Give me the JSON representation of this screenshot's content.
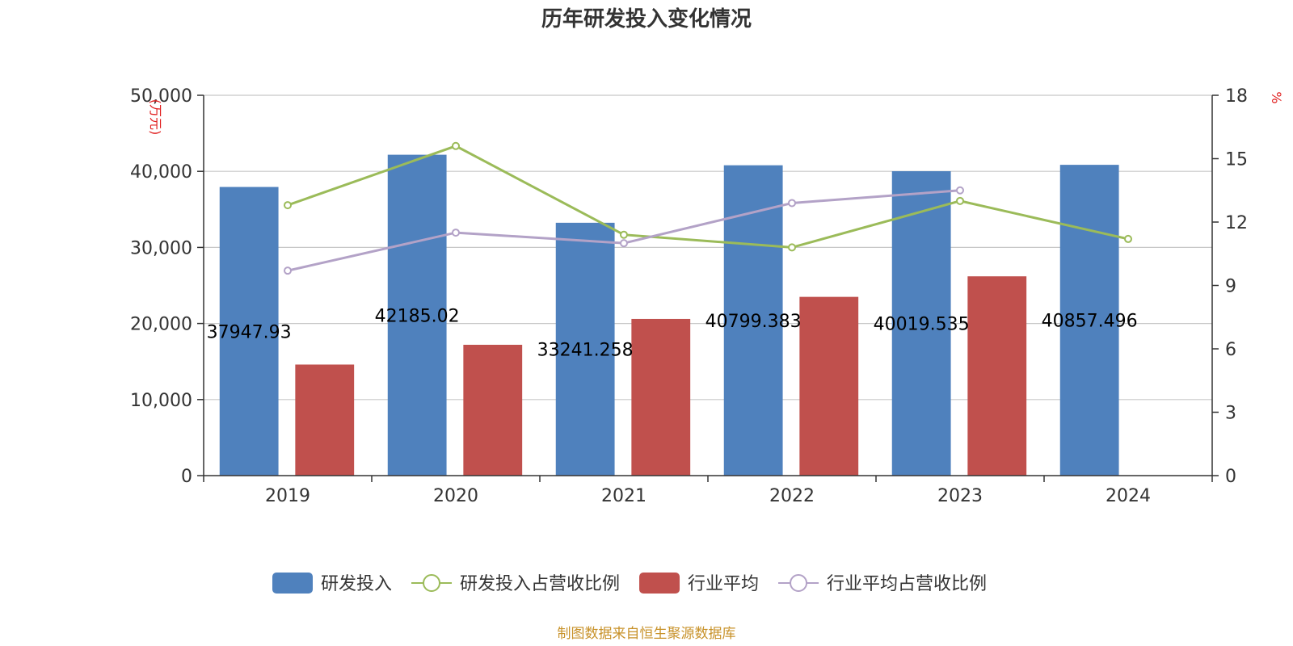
{
  "chart_data": {
    "type": "bar",
    "title": "历年研发投入变化情况",
    "categories": [
      "2019",
      "2020",
      "2021",
      "2022",
      "2023",
      "2024"
    ],
    "y_left": {
      "label": "(万元)",
      "min": 0,
      "max": 50000,
      "ticks": [
        "0",
        "10,000",
        "20,000",
        "30,000",
        "40,000",
        "50,000"
      ]
    },
    "y_right": {
      "label": "%",
      "min": 0,
      "max": 18,
      "ticks": [
        "0",
        "3",
        "6",
        "9",
        "12",
        "15",
        "18"
      ]
    },
    "series": [
      {
        "name": "研发投入",
        "kind": "bar",
        "axis": "left",
        "color": "#4f81bd",
        "values": [
          37947.93,
          42185.02,
          33241.258,
          40799.383,
          40019.535,
          40857.496
        ],
        "labels": [
          "37947.93",
          "42185.02",
          "33241.258",
          "40799.383",
          "40019.535",
          "40857.496"
        ]
      },
      {
        "name": "研发投入占营收比例",
        "kind": "line",
        "axis": "right",
        "color": "#9bbb59",
        "values": [
          12.8,
          15.6,
          11.4,
          10.8,
          13.0,
          11.2
        ]
      },
      {
        "name": "行业平均",
        "kind": "bar",
        "axis": "left",
        "color": "#c0504d",
        "values": [
          14600,
          17200,
          20600,
          23500,
          26200,
          null
        ]
      },
      {
        "name": "行业平均占营收比例",
        "kind": "line",
        "axis": "right",
        "color": "#b3a2c7",
        "values": [
          9.7,
          11.5,
          11.0,
          12.9,
          13.5,
          null
        ]
      }
    ],
    "grid": true,
    "legend": "bottom"
  },
  "source": "制图数据来自恒生聚源数据库"
}
